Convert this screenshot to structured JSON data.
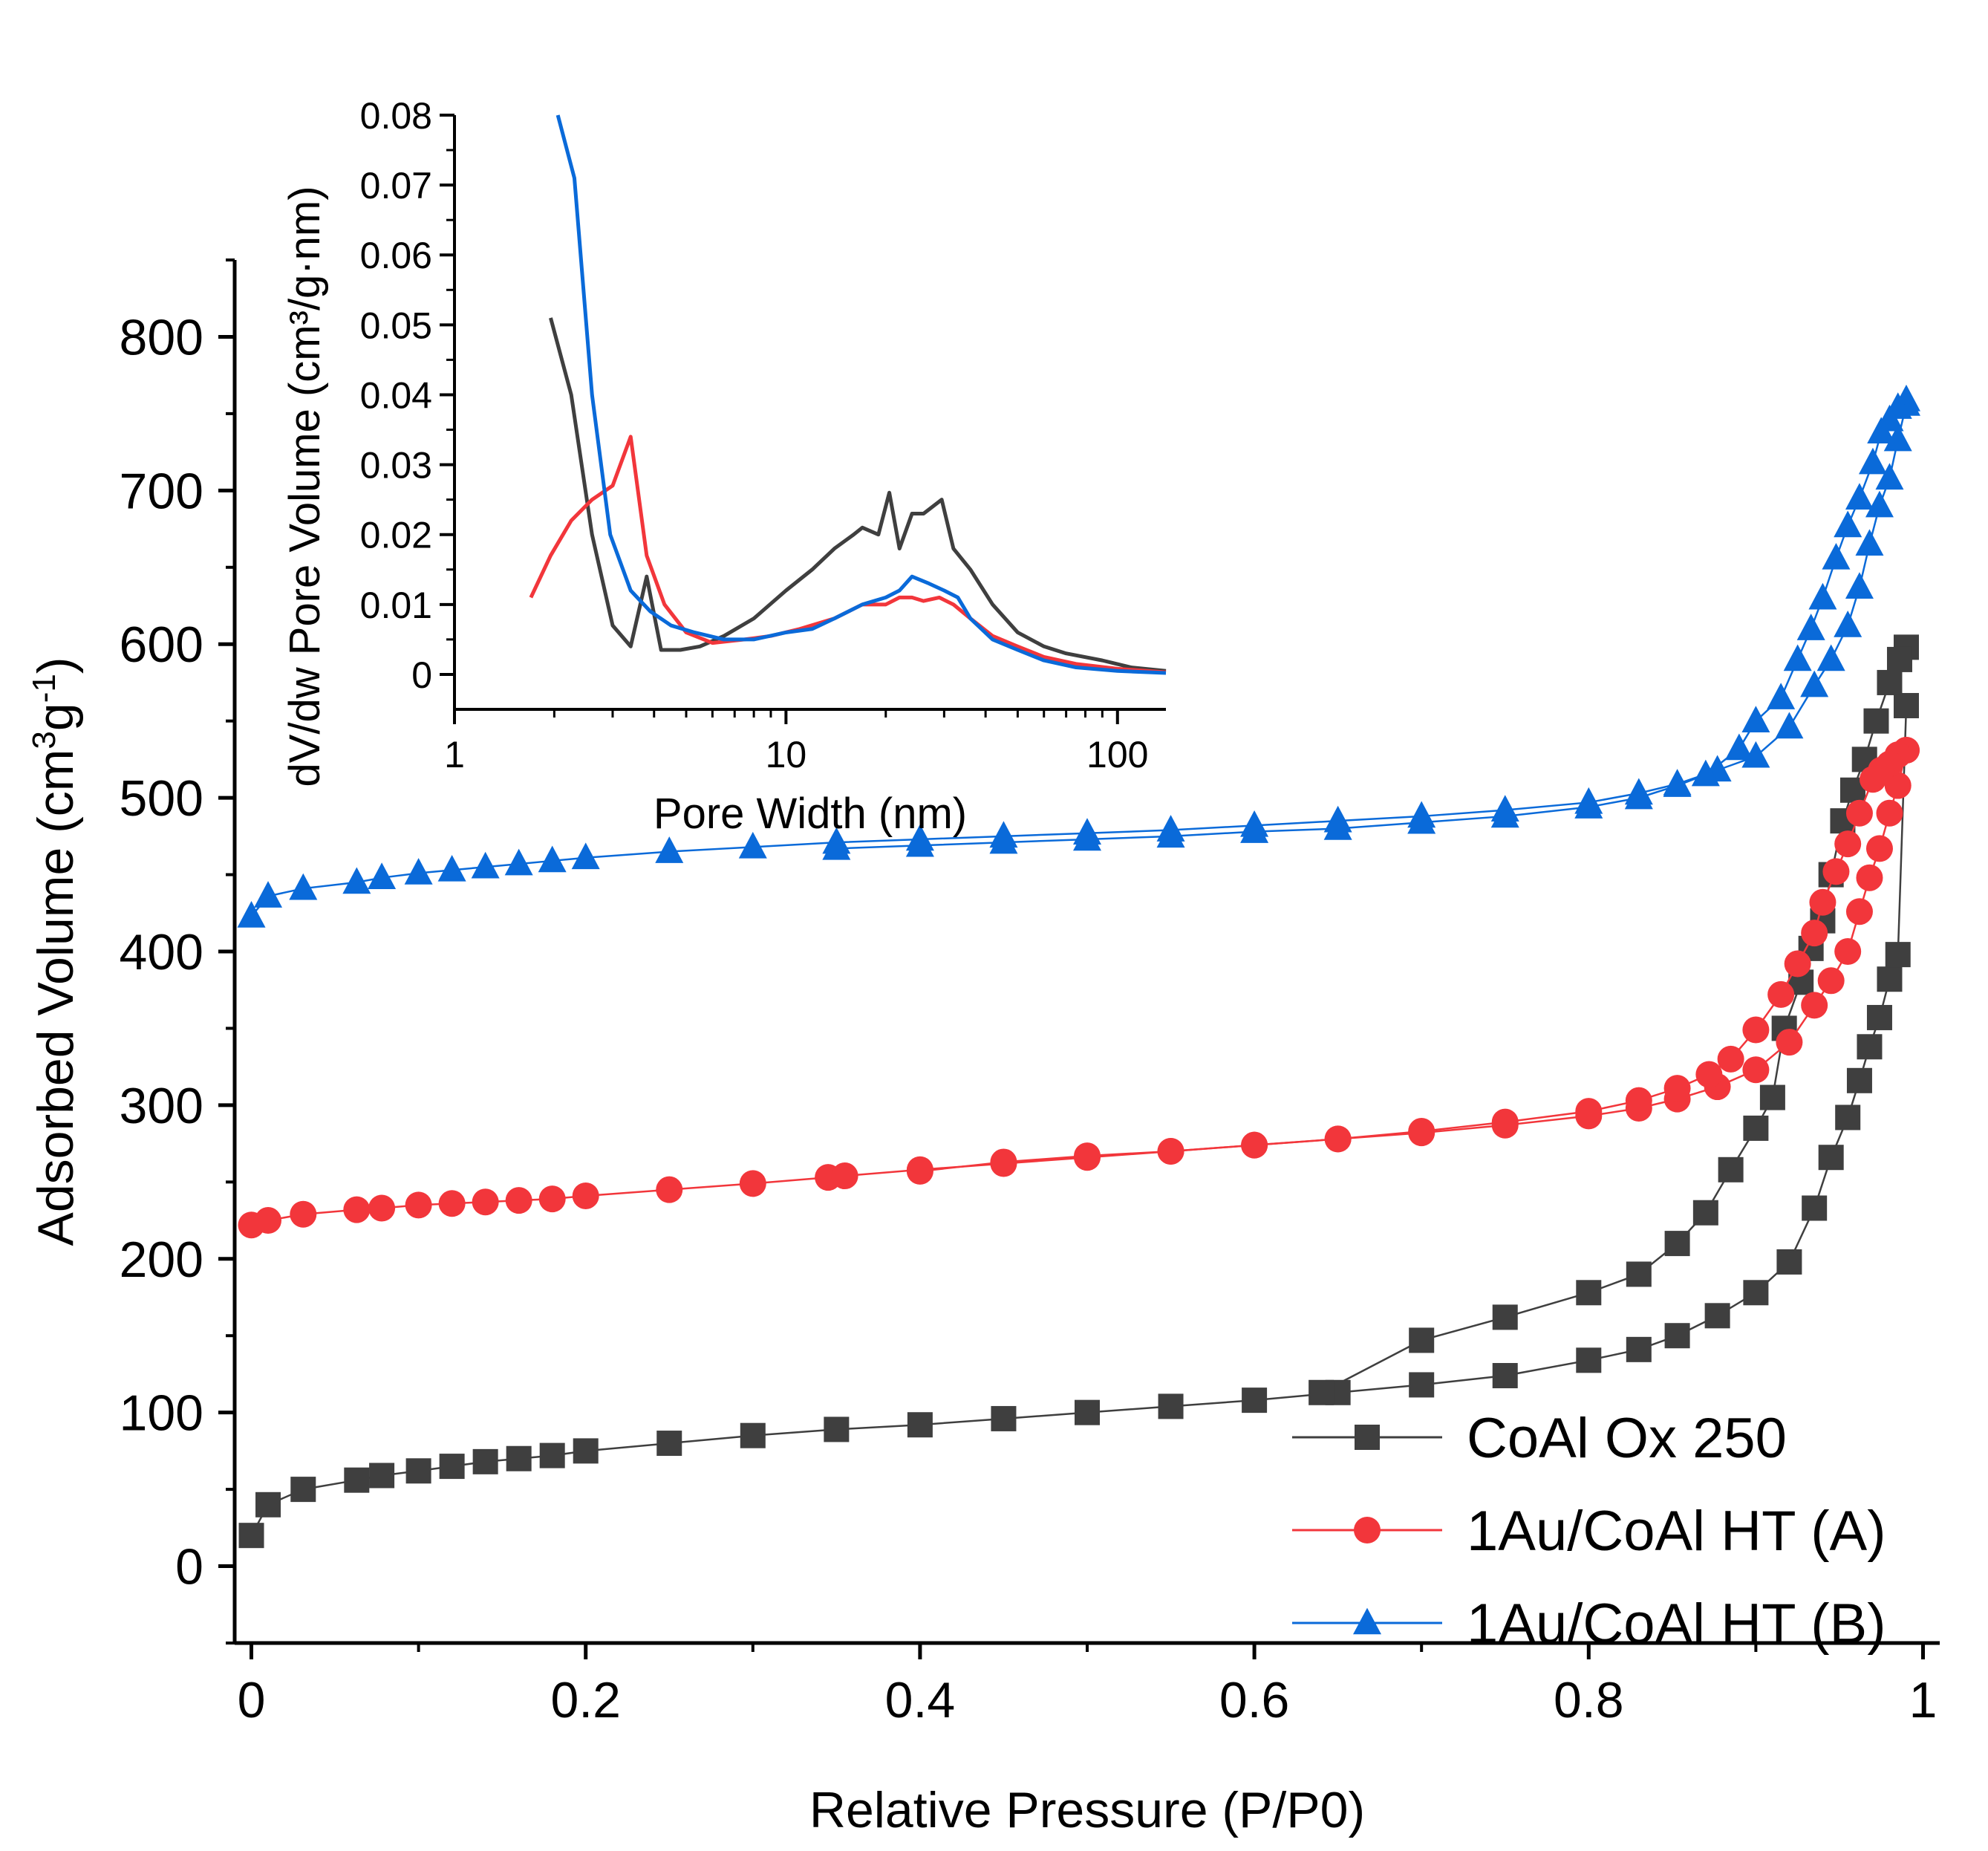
{
  "chart_data": [
    {
      "id": "main",
      "type": "scatter",
      "title": "",
      "xlabel": "Relative Pressure (P/P0)",
      "ylabel": {
        "base": "Adsorbed Volume (cm",
        "sup1": "3",
        "mid": "g",
        "sup2": "-1",
        "end": ")"
      },
      "xlim": [
        -0.01,
        1.01
      ],
      "ylim": [
        -50,
        850
      ],
      "xticks": [
        0,
        0.2,
        0.4,
        0.6,
        0.8,
        1
      ],
      "xtick_labels": [
        "0",
        "0.2",
        "0.4",
        "0.6",
        "0.8",
        "1"
      ],
      "yticks": [
        0,
        100,
        200,
        300,
        400,
        500,
        600,
        700,
        800
      ],
      "ytick_labels": [
        "0",
        "100",
        "200",
        "300",
        "400",
        "500",
        "600",
        "700",
        "800"
      ],
      "legend_position": "bottom-right",
      "series": [
        {
          "name": "CoAl Ox 250",
          "color": "#3f3f3f",
          "marker": "square",
          "adsorption": {
            "x": [
              0.0,
              0.01,
              0.031,
              0.063,
              0.078,
              0.1,
              0.12,
              0.14,
              0.16,
              0.18,
              0.2,
              0.25,
              0.3,
              0.35,
              0.4,
              0.45,
              0.5,
              0.55,
              0.6,
              0.65,
              0.7,
              0.75,
              0.8,
              0.83,
              0.853,
              0.877,
              0.9,
              0.92,
              0.935,
              0.945,
              0.955,
              0.962,
              0.968,
              0.974,
              0.98,
              0.985,
              0.99
            ],
            "y": [
              20,
              40,
              50,
              56,
              59,
              62,
              65,
              68,
              70,
              72,
              75,
              80,
              85,
              89,
              92,
              96,
              100,
              104,
              108,
              113,
              118,
              124,
              134,
              141,
              150,
              163,
              178,
              198,
              233,
              266,
              292,
              316,
              338,
              357,
              382,
              398,
              560
            ]
          },
          "desorption": {
            "x": [
              0.99,
              0.986,
              0.98,
              0.972,
              0.965,
              0.958,
              0.952,
              0.945,
              0.94,
              0.933,
              0.927,
              0.917,
              0.91,
              0.9,
              0.885,
              0.87,
              0.853,
              0.83,
              0.8,
              0.75,
              0.7,
              0.64
            ],
            "y": [
              598,
              590,
              575,
              550,
              525,
              505,
              485,
              450,
              420,
              402,
              380,
              350,
              305,
              285,
              258,
              230,
              210,
              190,
              178,
              162,
              147,
              113
            ]
          }
        },
        {
          "name": "1Au/CoAl HT (A)",
          "color": "#f2363b",
          "marker": "circle",
          "adsorption": {
            "x": [
              0.0,
              0.01,
              0.031,
              0.063,
              0.078,
              0.1,
              0.12,
              0.14,
              0.16,
              0.18,
              0.2,
              0.25,
              0.3,
              0.345,
              0.355,
              0.4,
              0.45,
              0.5,
              0.55,
              0.6,
              0.65,
              0.7,
              0.75,
              0.8,
              0.83,
              0.853,
              0.877,
              0.9,
              0.92,
              0.935,
              0.945,
              0.955,
              0.962,
              0.968,
              0.974,
              0.98,
              0.985,
              0.99
            ],
            "y": [
              222,
              225,
              229,
              232,
              233,
              235,
              236,
              237,
              238,
              239,
              241,
              245,
              249,
              253,
              254,
              258,
              262,
              266,
              270,
              274,
              278,
              282,
              287,
              293,
              298,
              304,
              312,
              323,
              341,
              365,
              381,
              400,
              426,
              448,
              467,
              490,
              508,
              531
            ]
          },
          "desorption": {
            "x": [
              0.99,
              0.985,
              0.98,
              0.975,
              0.97,
              0.962,
              0.955,
              0.948,
              0.94,
              0.935,
              0.925,
              0.915,
              0.9,
              0.885,
              0.872,
              0.853,
              0.83,
              0.8,
              0.75,
              0.7,
              0.65,
              0.6,
              0.55,
              0.5,
              0.45,
              0.4
            ],
            "y": [
              531,
              528,
              522,
              518,
              512,
              490,
              470,
              452,
              432,
              412,
              392,
              372,
              349,
              330,
              320,
              311,
              303,
              296,
              289,
              283,
              278,
              274,
              270,
              267,
              263,
              257
            ]
          }
        },
        {
          "name": "1Au/CoAl HT (B)",
          "color": "#0a6ad9",
          "marker": "triangle",
          "adsorption": {
            "x": [
              0.0,
              0.01,
              0.031,
              0.063,
              0.078,
              0.1,
              0.12,
              0.14,
              0.16,
              0.18,
              0.2,
              0.25,
              0.3,
              0.35,
              0.4,
              0.45,
              0.5,
              0.55,
              0.6,
              0.65,
              0.7,
              0.75,
              0.8,
              0.83,
              0.853,
              0.877,
              0.9,
              0.92,
              0.935,
              0.945,
              0.955,
              0.962,
              0.968,
              0.974,
              0.98,
              0.985,
              0.99
            ],
            "y": [
              423,
              436,
              441,
              445,
              448,
              451,
              453,
              455,
              457,
              459,
              461,
              465,
              468,
              471,
              473,
              475,
              477,
              479,
              482,
              485,
              488,
              492,
              497,
              503,
              509,
              518,
              527,
              546,
              573,
              590,
              612,
              637,
              665,
              690,
              708,
              733,
              756
            ]
          },
          "desorption": {
            "x": [
              0.99,
              0.985,
              0.98,
              0.975,
              0.97,
              0.962,
              0.955,
              0.948,
              0.94,
              0.933,
              0.925,
              0.915,
              0.9,
              0.89,
              0.87,
              0.853,
              0.83,
              0.8,
              0.75,
              0.7,
              0.65,
              0.6,
              0.55,
              0.5,
              0.45,
              0.4,
              0.35
            ],
            "y": [
              759,
              754,
              746,
              738,
              718,
              695,
              677,
              656,
              630,
              610,
              590,
              565,
              550,
              532,
              515,
              508,
              500,
              494,
              488,
              484,
              480,
              478,
              475,
              473,
              471,
              469,
              467
            ]
          }
        }
      ]
    },
    {
      "id": "inset",
      "type": "line",
      "title": "",
      "xlabel": "Pore Width (nm)",
      "ylabel": "dV/dw Pore Volume (cm³/g·nm)",
      "xscale": "log",
      "xlim": [
        1,
        140
      ],
      "ylim": [
        -0.005,
        0.08
      ],
      "xticks": [
        1,
        10,
        100
      ],
      "xtick_labels": [
        "1",
        "10",
        "100"
      ],
      "yticks": [
        0,
        0.01,
        0.02,
        0.03,
        0.04,
        0.05,
        0.06,
        0.07,
        0.08
      ],
      "ytick_labels": [
        "0",
        "0.01",
        "0.02",
        "0.03",
        "0.04",
        "0.05",
        "0.06",
        "0.07",
        "0.08"
      ],
      "series": [
        {
          "name": "CoAl Ox 250",
          "color": "#3f3f3f",
          "x": [
            1.95,
            2.25,
            2.6,
            3.0,
            3.4,
            3.8,
            4.2,
            4.8,
            5.5,
            6.5,
            8,
            10,
            12,
            14,
            16,
            17,
            19,
            20.5,
            22,
            24,
            26,
            29.5,
            32,
            36,
            42,
            50,
            60,
            70,
            90,
            110,
            140
          ],
          "y": [
            0.051,
            0.04,
            0.02,
            0.007,
            0.004,
            0.014,
            0.0035,
            0.0035,
            0.004,
            0.0055,
            0.008,
            0.012,
            0.015,
            0.018,
            0.02,
            0.021,
            0.02,
            0.026,
            0.018,
            0.023,
            0.023,
            0.025,
            0.018,
            0.015,
            0.01,
            0.006,
            0.004,
            0.003,
            0.002,
            0.001,
            0.0005
          ]
        },
        {
          "name": "1Au/CoAl HT (A)",
          "color": "#f2363b",
          "x": [
            1.7,
            1.95,
            2.25,
            2.6,
            3.0,
            3.4,
            3.8,
            4.3,
            5.0,
            6.0,
            7.5,
            9,
            11,
            14,
            17,
            20,
            22,
            24,
            26,
            29,
            32,
            36,
            42,
            50,
            60,
            75,
            100,
            140
          ],
          "y": [
            0.011,
            0.017,
            0.022,
            0.025,
            0.027,
            0.034,
            0.017,
            0.01,
            0.006,
            0.0045,
            0.005,
            0.0055,
            0.0065,
            0.008,
            0.01,
            0.01,
            0.011,
            0.011,
            0.0105,
            0.011,
            0.01,
            0.008,
            0.0055,
            0.004,
            0.0025,
            0.0015,
            0.0008,
            0.0003
          ]
        },
        {
          "name": "1Au/CoAl HT (B)",
          "color": "#0a6ad9",
          "x": [
            2.05,
            2.3,
            2.6,
            2.95,
            3.4,
            3.9,
            4.5,
            5.3,
            6.5,
            8,
            10,
            12,
            14,
            17,
            20,
            22,
            24,
            27,
            30,
            33,
            36,
            42,
            50,
            60,
            75,
            100,
            140
          ],
          "y": [
            0.08,
            0.071,
            0.04,
            0.02,
            0.012,
            0.009,
            0.007,
            0.006,
            0.005,
            0.005,
            0.006,
            0.0065,
            0.008,
            0.01,
            0.011,
            0.012,
            0.014,
            0.013,
            0.012,
            0.011,
            0.008,
            0.005,
            0.0035,
            0.002,
            0.001,
            0.0005,
            0.0002
          ]
        }
      ]
    }
  ]
}
